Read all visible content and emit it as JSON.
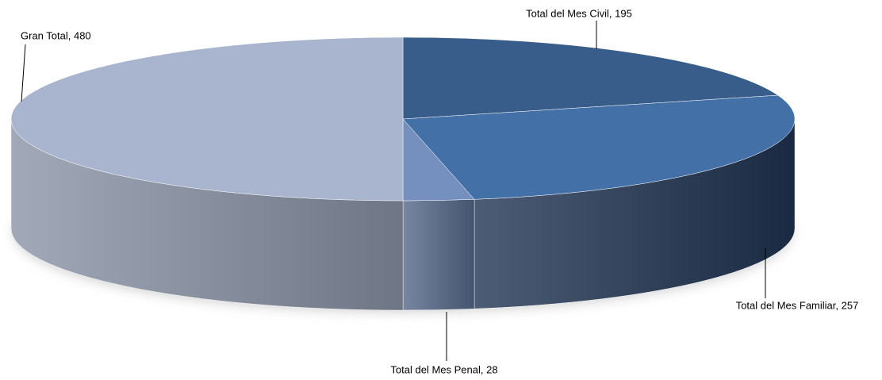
{
  "chart_data": {
    "type": "pie3d",
    "values": [
      195,
      257,
      28,
      480
    ],
    "value_labels": [
      "Total del Mes Civil, 195",
      "Total del Mes Familiar, 257",
      "Total del Mes Penal, 28",
      "Gran Total, 480"
    ],
    "colors": [
      "#385d8a",
      "#4470a8",
      "#7590bf",
      "#a9b5cf"
    ],
    "side_colors": [
      "#27426a",
      "#1f3452",
      "#55688a",
      "#8a93a6"
    ]
  }
}
